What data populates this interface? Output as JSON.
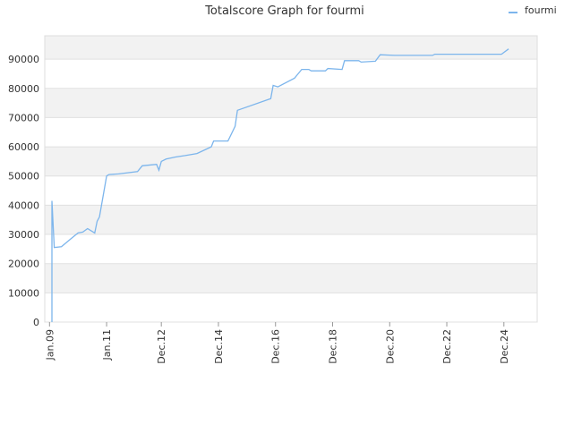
{
  "chart_data": {
    "type": "line",
    "title": "Totalscore Graph for fourmi",
    "x": [
      "2009-02",
      "2009-02",
      "2009-03",
      "2009-06",
      "2009-10",
      "2010-01",
      "2010-03",
      "2010-05",
      "2010-08",
      "2010-09",
      "2010-10",
      "2011-01",
      "2011-02",
      "2011-06",
      "2012-02",
      "2012-04",
      "2012-10",
      "2012-11",
      "2012-12",
      "2013-02",
      "2013-06",
      "2013-10",
      "2014-03",
      "2014-09",
      "2014-10",
      "2015-04",
      "2015-07",
      "2015-08",
      "2016-10",
      "2016-11",
      "2017-01",
      "2017-08",
      "2017-09",
      "2017-11",
      "2018-02",
      "2018-03",
      "2018-09",
      "2018-10",
      "2019-04",
      "2019-05",
      "2019-11",
      "2019-12",
      "2020-06",
      "2020-08",
      "2021-02",
      "2022-06",
      "2022-07",
      "2024-11",
      "2025-02"
    ],
    "series": [
      {
        "name": "fourmi",
        "color": "#7cb5ec",
        "values": [
          0,
          41500,
          25500,
          25800,
          28500,
          30500,
          30800,
          32000,
          30500,
          34500,
          36000,
          50000,
          50500,
          50700,
          51500,
          53500,
          54000,
          52000,
          55000,
          55800,
          56500,
          57000,
          57700,
          60000,
          62000,
          62000,
          67000,
          72500,
          76500,
          81000,
          80500,
          83500,
          84500,
          86500,
          86500,
          86000,
          86000,
          86800,
          86500,
          89500,
          89500,
          89000,
          89300,
          91500,
          91300,
          91300,
          91700,
          91700,
          93500
        ]
      }
    ],
    "xlim": [
      "2008-11",
      "2026-02"
    ],
    "xticks": [
      {
        "value": "2009-01",
        "label": "Jan.09"
      },
      {
        "value": "2011-01",
        "label": "Jan.11"
      },
      {
        "value": "2012-12",
        "label": "Dec.12"
      },
      {
        "value": "2014-12",
        "label": "Dec.14"
      },
      {
        "value": "2016-12",
        "label": "Dec.16"
      },
      {
        "value": "2018-12",
        "label": "Dec.18"
      },
      {
        "value": "2020-12",
        "label": "Dec.20"
      },
      {
        "value": "2022-12",
        "label": "Dec.22"
      },
      {
        "value": "2024-12",
        "label": "Dec.24"
      }
    ],
    "ylim": [
      0,
      98000
    ],
    "yticks": [
      0,
      10000,
      20000,
      30000,
      40000,
      50000,
      60000,
      70000,
      80000,
      90000
    ],
    "grid": true,
    "legend": "top-right"
  }
}
